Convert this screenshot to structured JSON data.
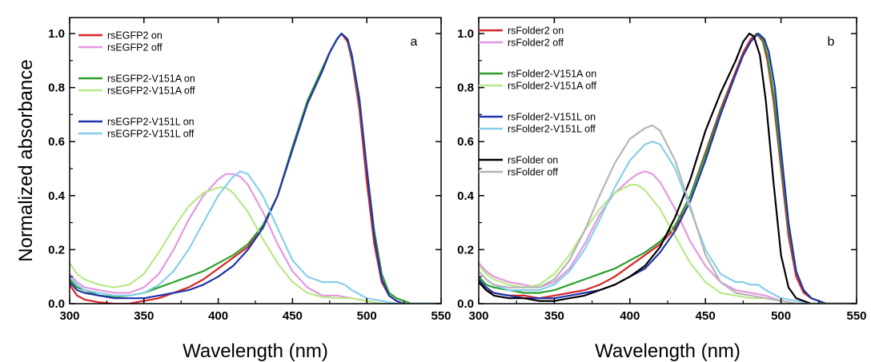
{
  "chart_data": [
    {
      "type": "line",
      "panel": "a",
      "xlabel": "Wavelength (nm)",
      "ylabel": "Normalized absorbance",
      "xlim": [
        300,
        550
      ],
      "ylim": [
        0,
        1.0
      ],
      "xticks": [
        300,
        350,
        400,
        450,
        500,
        550
      ],
      "yticks": [
        0.0,
        0.2,
        0.4,
        0.6,
        0.8,
        1.0
      ],
      "xtick_labels": [
        "300",
        "350",
        "400",
        "450",
        "500",
        "550"
      ],
      "ytick_labels": [
        "0.0",
        "0.2",
        "0.4",
        "0.6",
        "0.8",
        "1.0"
      ],
      "legend_position": "top-left",
      "series": [
        {
          "name": "rsEGFP2 on",
          "color": "#d62728",
          "x": [
            300,
            305,
            310,
            320,
            330,
            340,
            350,
            360,
            370,
            380,
            390,
            400,
            410,
            420,
            430,
            440,
            450,
            460,
            470,
            475,
            480,
            483,
            487,
            490,
            495,
            500,
            505,
            510,
            515,
            520,
            525,
            530,
            550
          ],
          "y": [
            0.07,
            0.03,
            0.015,
            0.005,
            0.0,
            0.0,
            0.01,
            0.02,
            0.04,
            0.06,
            0.09,
            0.13,
            0.17,
            0.21,
            0.28,
            0.4,
            0.58,
            0.75,
            0.87,
            0.93,
            0.98,
            1.0,
            0.97,
            0.9,
            0.72,
            0.45,
            0.22,
            0.08,
            0.03,
            0.01,
            0.0,
            0.0,
            0.0
          ]
        },
        {
          "name": "rsEGFP2 off",
          "color": "#e597e0",
          "x": [
            300,
            305,
            310,
            320,
            330,
            340,
            350,
            360,
            370,
            380,
            390,
            400,
            405,
            410,
            415,
            420,
            430,
            440,
            450,
            460,
            470,
            480,
            490,
            500,
            510,
            520,
            550
          ],
          "y": [
            0.11,
            0.08,
            0.06,
            0.05,
            0.04,
            0.04,
            0.06,
            0.11,
            0.2,
            0.31,
            0.4,
            0.46,
            0.48,
            0.48,
            0.47,
            0.44,
            0.34,
            0.22,
            0.12,
            0.06,
            0.03,
            0.03,
            0.02,
            0.01,
            0.0,
            0.0,
            0.0
          ]
        },
        {
          "name": "rsEGFP2-V151A on",
          "color": "#2ca02c",
          "x": [
            300,
            305,
            310,
            320,
            330,
            340,
            350,
            360,
            370,
            380,
            390,
            400,
            410,
            420,
            430,
            440,
            450,
            460,
            470,
            475,
            480,
            483,
            487,
            490,
            495,
            500,
            505,
            510,
            515,
            520,
            525,
            530,
            550
          ],
          "y": [
            0.09,
            0.06,
            0.05,
            0.03,
            0.025,
            0.03,
            0.04,
            0.06,
            0.08,
            0.1,
            0.12,
            0.15,
            0.18,
            0.22,
            0.29,
            0.4,
            0.58,
            0.75,
            0.87,
            0.93,
            0.98,
            1.0,
            0.98,
            0.91,
            0.75,
            0.5,
            0.27,
            0.11,
            0.04,
            0.02,
            0.01,
            0.0,
            0.0
          ]
        },
        {
          "name": "rsEGFP2-V151A off",
          "color": "#b8e986",
          "x": [
            300,
            305,
            310,
            320,
            330,
            340,
            350,
            360,
            370,
            380,
            390,
            400,
            405,
            410,
            420,
            430,
            440,
            450,
            460,
            470,
            480,
            490,
            500,
            510,
            520,
            550
          ],
          "y": [
            0.15,
            0.11,
            0.09,
            0.07,
            0.06,
            0.07,
            0.11,
            0.19,
            0.28,
            0.36,
            0.41,
            0.43,
            0.43,
            0.41,
            0.34,
            0.24,
            0.15,
            0.08,
            0.04,
            0.025,
            0.02,
            0.02,
            0.01,
            0.0,
            0.0,
            0.0
          ]
        },
        {
          "name": "rsEGFP2-V151L on",
          "color": "#2233aa",
          "x": [
            300,
            305,
            310,
            320,
            330,
            340,
            350,
            360,
            370,
            380,
            390,
            400,
            410,
            420,
            430,
            440,
            450,
            460,
            470,
            475,
            480,
            483,
            487,
            490,
            495,
            500,
            505,
            510,
            515,
            520,
            525,
            530,
            550
          ],
          "y": [
            0.08,
            0.05,
            0.04,
            0.03,
            0.02,
            0.02,
            0.02,
            0.03,
            0.04,
            0.05,
            0.07,
            0.1,
            0.14,
            0.2,
            0.28,
            0.4,
            0.57,
            0.74,
            0.86,
            0.93,
            0.98,
            1.0,
            0.98,
            0.92,
            0.76,
            0.5,
            0.25,
            0.09,
            0.03,
            0.01,
            0.0,
            0.0,
            0.0
          ]
        },
        {
          "name": "rsEGFP2-V151L off",
          "color": "#87ceeb",
          "x": [
            300,
            305,
            310,
            320,
            330,
            340,
            350,
            360,
            370,
            380,
            390,
            400,
            410,
            415,
            420,
            430,
            440,
            450,
            460,
            470,
            475,
            480,
            485,
            490,
            500,
            510,
            520,
            550
          ],
          "y": [
            0.1,
            0.07,
            0.05,
            0.04,
            0.03,
            0.03,
            0.04,
            0.07,
            0.12,
            0.2,
            0.3,
            0.4,
            0.47,
            0.49,
            0.48,
            0.4,
            0.28,
            0.16,
            0.1,
            0.08,
            0.08,
            0.08,
            0.07,
            0.05,
            0.02,
            0.01,
            0.0,
            0.0
          ]
        }
      ]
    },
    {
      "type": "line",
      "panel": "b",
      "xlabel": "Wavelength (nm)",
      "ylabel": "",
      "xlim": [
        300,
        550
      ],
      "ylim": [
        0,
        1.0
      ],
      "xticks": [
        300,
        350,
        400,
        450,
        500,
        550
      ],
      "yticks": [
        0.0,
        0.2,
        0.4,
        0.6,
        0.8,
        1.0
      ],
      "xtick_labels": [
        "300",
        "350",
        "400",
        "450",
        "500",
        "550"
      ],
      "ytick_labels": [
        "0.0",
        "0.2",
        "0.4",
        "0.6",
        "0.8",
        "1.0"
      ],
      "legend_position": "top-left",
      "series": [
        {
          "name": "rsFolder2 on",
          "color": "#d62728",
          "x": [
            300,
            305,
            310,
            320,
            330,
            340,
            350,
            360,
            370,
            380,
            390,
            400,
            410,
            420,
            430,
            440,
            450,
            460,
            470,
            475,
            480,
            484,
            488,
            491,
            495,
            500,
            505,
            510,
            515,
            520,
            525,
            530,
            550
          ],
          "y": [
            0.08,
            0.05,
            0.04,
            0.03,
            0.03,
            0.02,
            0.03,
            0.04,
            0.05,
            0.07,
            0.1,
            0.14,
            0.18,
            0.22,
            0.28,
            0.4,
            0.56,
            0.72,
            0.86,
            0.93,
            0.98,
            1.0,
            0.97,
            0.9,
            0.75,
            0.5,
            0.25,
            0.1,
            0.04,
            0.02,
            0.01,
            0.0,
            0.0
          ]
        },
        {
          "name": "rsFolder2 off",
          "color": "#e597e0",
          "x": [
            300,
            305,
            310,
            320,
            330,
            340,
            350,
            360,
            370,
            380,
            390,
            400,
            405,
            410,
            415,
            420,
            430,
            440,
            450,
            460,
            470,
            480,
            490,
            500,
            510,
            520,
            550
          ],
          "y": [
            0.15,
            0.12,
            0.1,
            0.08,
            0.07,
            0.06,
            0.08,
            0.13,
            0.22,
            0.33,
            0.41,
            0.46,
            0.48,
            0.49,
            0.48,
            0.45,
            0.35,
            0.23,
            0.14,
            0.08,
            0.05,
            0.04,
            0.03,
            0.01,
            0.0,
            0.0,
            0.0
          ]
        },
        {
          "name": "rsFolder2-V151A on",
          "color": "#2ca02c",
          "x": [
            300,
            305,
            310,
            320,
            330,
            340,
            350,
            360,
            370,
            380,
            390,
            400,
            410,
            420,
            430,
            440,
            450,
            460,
            470,
            475,
            480,
            484,
            488,
            491,
            495,
            500,
            505,
            510,
            515,
            520,
            525,
            530,
            550
          ],
          "y": [
            0.1,
            0.07,
            0.06,
            0.05,
            0.04,
            0.04,
            0.05,
            0.07,
            0.09,
            0.11,
            0.13,
            0.16,
            0.19,
            0.23,
            0.29,
            0.4,
            0.55,
            0.71,
            0.85,
            0.92,
            0.97,
            1.0,
            0.98,
            0.92,
            0.78,
            0.53,
            0.28,
            0.12,
            0.05,
            0.02,
            0.01,
            0.0,
            0.0
          ]
        },
        {
          "name": "rsFolder2-V151A off",
          "color": "#b8e986",
          "x": [
            300,
            305,
            310,
            320,
            330,
            340,
            350,
            360,
            370,
            380,
            390,
            400,
            405,
            410,
            420,
            430,
            440,
            450,
            460,
            470,
            480,
            490,
            500,
            510,
            520,
            550
          ],
          "y": [
            0.14,
            0.11,
            0.09,
            0.07,
            0.06,
            0.07,
            0.11,
            0.18,
            0.27,
            0.35,
            0.41,
            0.44,
            0.44,
            0.42,
            0.35,
            0.25,
            0.15,
            0.08,
            0.04,
            0.03,
            0.02,
            0.02,
            0.01,
            0.0,
            0.0,
            0.0
          ]
        },
        {
          "name": "rsFolder2-V151L on",
          "color": "#2233aa",
          "x": [
            300,
            305,
            310,
            320,
            330,
            340,
            350,
            360,
            370,
            380,
            390,
            400,
            410,
            420,
            430,
            440,
            450,
            460,
            470,
            475,
            480,
            485,
            489,
            492,
            496,
            500,
            505,
            510,
            515,
            520,
            525,
            530,
            550
          ],
          "y": [
            0.09,
            0.06,
            0.04,
            0.03,
            0.02,
            0.02,
            0.02,
            0.03,
            0.04,
            0.05,
            0.07,
            0.1,
            0.13,
            0.19,
            0.27,
            0.38,
            0.53,
            0.7,
            0.85,
            0.92,
            0.97,
            1.0,
            0.98,
            0.93,
            0.8,
            0.57,
            0.3,
            0.12,
            0.05,
            0.02,
            0.01,
            0.0,
            0.0
          ]
        },
        {
          "name": "rsFolder2-V151L off",
          "color": "#87ceeb",
          "x": [
            300,
            305,
            310,
            320,
            330,
            340,
            350,
            360,
            370,
            380,
            390,
            400,
            410,
            415,
            420,
            430,
            440,
            450,
            460,
            470,
            475,
            480,
            485,
            490,
            500,
            510,
            520,
            550
          ],
          "y": [
            0.12,
            0.09,
            0.07,
            0.05,
            0.05,
            0.05,
            0.07,
            0.12,
            0.2,
            0.31,
            0.43,
            0.53,
            0.59,
            0.6,
            0.59,
            0.5,
            0.35,
            0.2,
            0.11,
            0.08,
            0.08,
            0.07,
            0.07,
            0.05,
            0.02,
            0.01,
            0.0,
            0.0
          ]
        },
        {
          "name": "rsFolder on",
          "color": "#000000",
          "x": [
            300,
            305,
            310,
            320,
            330,
            340,
            350,
            360,
            370,
            380,
            390,
            400,
            410,
            420,
            430,
            440,
            450,
            460,
            470,
            475,
            479,
            482,
            486,
            490,
            495,
            500,
            505,
            510,
            515,
            520,
            550
          ],
          "y": [
            0.08,
            0.05,
            0.03,
            0.02,
            0.02,
            0.01,
            0.01,
            0.02,
            0.03,
            0.05,
            0.07,
            0.1,
            0.14,
            0.21,
            0.32,
            0.46,
            0.64,
            0.78,
            0.9,
            0.97,
            1.0,
            0.99,
            0.92,
            0.75,
            0.45,
            0.18,
            0.06,
            0.02,
            0.01,
            0.0,
            0.0
          ]
        },
        {
          "name": "rsFolder off",
          "color": "#b5b5b5",
          "x": [
            300,
            305,
            310,
            320,
            330,
            340,
            350,
            360,
            370,
            380,
            390,
            400,
            410,
            415,
            420,
            430,
            440,
            450,
            460,
            470,
            480,
            490,
            500,
            510,
            520,
            550
          ],
          "y": [
            0.12,
            0.09,
            0.07,
            0.06,
            0.06,
            0.06,
            0.09,
            0.16,
            0.27,
            0.4,
            0.52,
            0.61,
            0.65,
            0.66,
            0.64,
            0.53,
            0.36,
            0.18,
            0.08,
            0.04,
            0.03,
            0.02,
            0.01,
            0.0,
            0.0,
            0.0
          ]
        }
      ]
    }
  ]
}
